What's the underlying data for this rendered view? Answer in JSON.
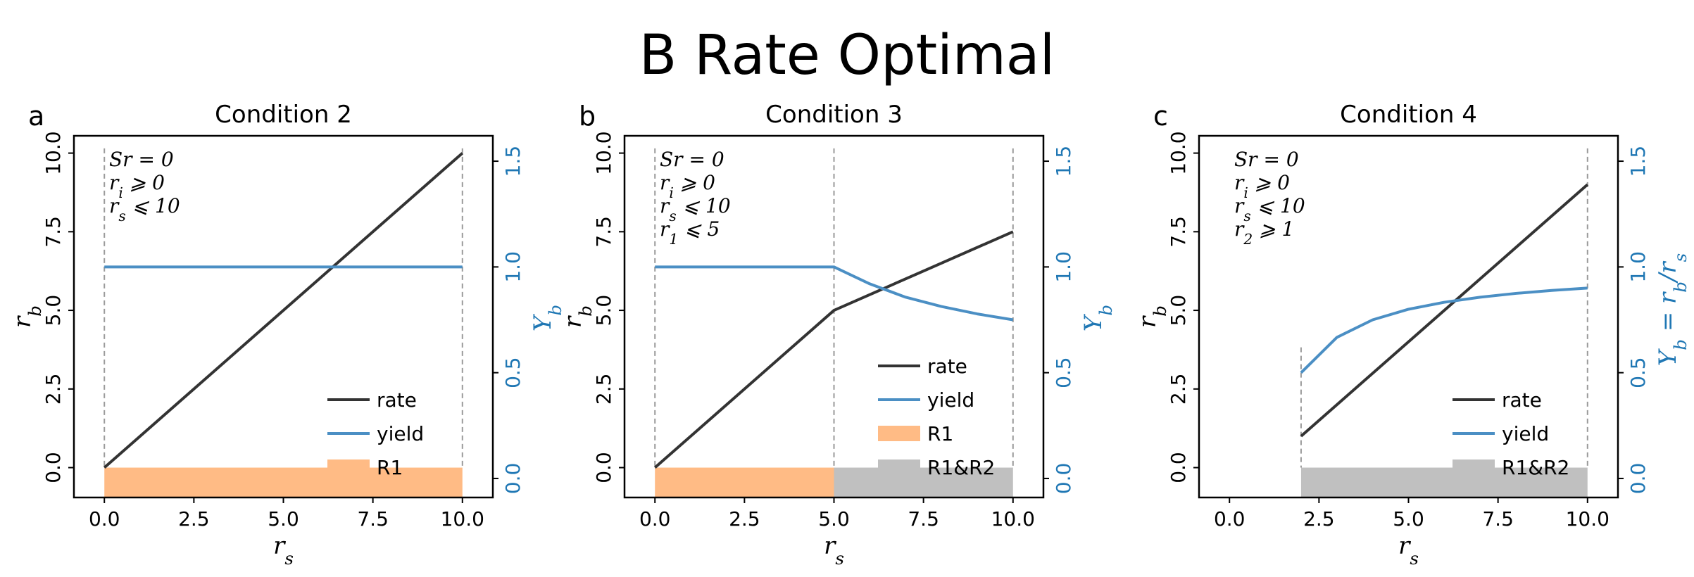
{
  "figure_title": "B Rate Optimal",
  "colors": {
    "rate": "#333333",
    "yield": "#4b8fc4",
    "R1": "#ffbb85",
    "R1&R2": "#c0c0c0",
    "right_axis": "#1f77b4"
  },
  "chart_data": [
    {
      "panel": "a",
      "title": "Condition 2",
      "type": "line",
      "xlabel": "r_s",
      "ylabel": "r_b",
      "ylabel_right": "Y_b",
      "xticks": [
        "0.0",
        "2.5",
        "5.0",
        "7.5",
        "10.0"
      ],
      "yticks": [
        "0.0",
        "2.5",
        "5.0",
        "7.5",
        "10.0"
      ],
      "yticks_right": [
        "0.0",
        "0.5",
        "1.0",
        "1.5"
      ],
      "xlim": [
        -0.85,
        10.85
      ],
      "ylim": [
        -0.95,
        10.55
      ],
      "ylim_right": [
        -0.09,
        1.62
      ],
      "annotations": [
        "Sr = 0",
        "r_i ⩾ 0",
        "r_s ⩽ 10"
      ],
      "legend": [
        "rate",
        "yield",
        "R1"
      ],
      "legend_placement": "lower-right",
      "series": [
        {
          "name": "rate",
          "axis": "left",
          "x": [
            0,
            10
          ],
          "y": [
            0,
            10
          ]
        },
        {
          "name": "yield",
          "axis": "right",
          "x": [
            0,
            10
          ],
          "y": [
            1.0,
            1.0
          ]
        }
      ],
      "regions": [
        {
          "name": "R1",
          "x": [
            0,
            10
          ]
        }
      ],
      "vlines": [
        0,
        10
      ]
    },
    {
      "panel": "b",
      "title": "Condition 3",
      "type": "line",
      "xlabel": "r_s",
      "ylabel": "r_b",
      "ylabel_right": "Y_b",
      "xticks": [
        "0.0",
        "2.5",
        "5.0",
        "7.5",
        "10.0"
      ],
      "yticks": [
        "0.0",
        "2.5",
        "5.0",
        "7.5",
        "10.0"
      ],
      "yticks_right": [
        "0.0",
        "0.5",
        "1.0",
        "1.5"
      ],
      "xlim": [
        -0.85,
        10.85
      ],
      "ylim": [
        -0.95,
        10.55
      ],
      "ylim_right": [
        -0.09,
        1.62
      ],
      "annotations": [
        "Sr = 0",
        "r_i ⩾ 0",
        "r_s ⩽ 10",
        "r_1 ⩽ 5"
      ],
      "legend": [
        "rate",
        "yield",
        "R1",
        "R1&R2"
      ],
      "legend_placement": "lower-right",
      "series": [
        {
          "name": "rate",
          "axis": "left",
          "x": [
            0,
            5,
            10
          ],
          "y": [
            0,
            5,
            7.5
          ]
        },
        {
          "name": "yield",
          "axis": "right",
          "x": [
            0,
            5,
            6,
            7,
            8,
            9,
            10
          ],
          "y": [
            1.0,
            1.0,
            0.92,
            0.857,
            0.813,
            0.778,
            0.75
          ]
        }
      ],
      "regions": [
        {
          "name": "R1",
          "x": [
            0,
            5
          ]
        },
        {
          "name": "R1&R2",
          "x": [
            5,
            10
          ]
        }
      ],
      "vlines": [
        0,
        5,
        10
      ]
    },
    {
      "panel": "c",
      "title": "Condition 4",
      "type": "line",
      "xlabel": "r_s",
      "ylabel": "r_b",
      "ylabel_right": "Y_b = r_b/r_s",
      "xticks": [
        "0.0",
        "2.5",
        "5.0",
        "7.5",
        "10.0"
      ],
      "yticks": [
        "0.0",
        "2.5",
        "5.0",
        "7.5",
        "10.0"
      ],
      "yticks_right": [
        "0.0",
        "0.5",
        "1.0",
        "1.5"
      ],
      "xlim": [
        -0.85,
        10.85
      ],
      "ylim": [
        -0.95,
        10.55
      ],
      "ylim_right": [
        -0.09,
        1.62
      ],
      "annotations": [
        "Sr = 0",
        "r_i ⩾ 0",
        "r_s ⩽ 10",
        "r_2 ⩾ 1"
      ],
      "legend": [
        "rate",
        "yield",
        "R1&R2"
      ],
      "legend_placement": "lower-right",
      "series": [
        {
          "name": "rate",
          "axis": "left",
          "x": [
            2,
            10
          ],
          "y": [
            1,
            9
          ]
        },
        {
          "name": "yield",
          "axis": "right",
          "x": [
            2,
            3,
            4,
            5,
            6,
            7,
            8,
            9,
            10
          ],
          "y": [
            0.5,
            0.667,
            0.75,
            0.8,
            0.833,
            0.857,
            0.875,
            0.889,
            0.9
          ]
        }
      ],
      "regions": [
        {
          "name": "R1&R2",
          "x": [
            2,
            10
          ]
        }
      ],
      "vlines": [
        2,
        10
      ]
    }
  ]
}
